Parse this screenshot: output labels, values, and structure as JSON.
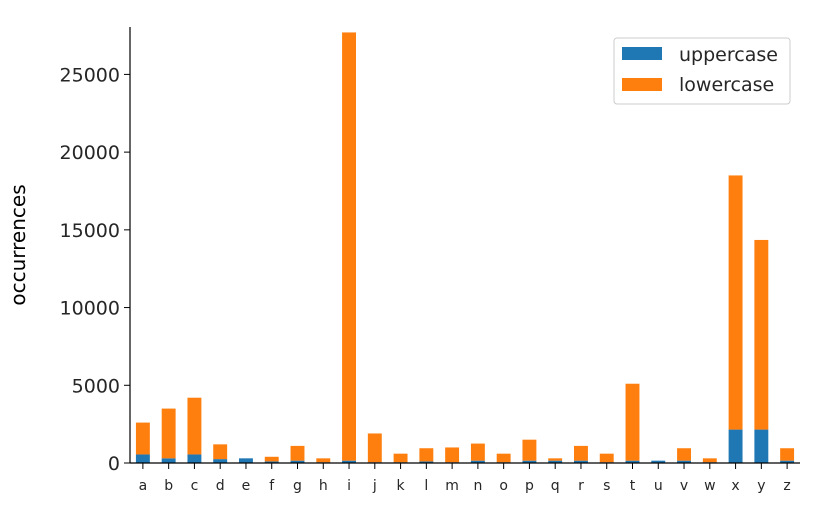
{
  "chart_data": {
    "type": "bar",
    "stacked": true,
    "title": "",
    "xlabel": "",
    "ylabel": "occurrences",
    "ylim": [
      0,
      28500
    ],
    "yticks": [
      0,
      5000,
      10000,
      15000,
      20000,
      25000
    ],
    "grid": false,
    "legend_position": "top-right",
    "categories": [
      "a",
      "b",
      "c",
      "d",
      "e",
      "f",
      "g",
      "h",
      "i",
      "j",
      "k",
      "l",
      "m",
      "n",
      "o",
      "p",
      "q",
      "r",
      "s",
      "t",
      "u",
      "v",
      "w",
      "x",
      "y",
      "z"
    ],
    "series": [
      {
        "name": "uppercase",
        "color": "#1f77b4",
        "values": [
          550,
          300,
          550,
          250,
          300,
          100,
          150,
          50,
          150,
          50,
          50,
          100,
          50,
          150,
          50,
          150,
          150,
          150,
          50,
          150,
          150,
          150,
          50,
          2150,
          2150,
          150
        ]
      },
      {
        "name": "lowercase",
        "color": "#ff7f0e",
        "values": [
          2050,
          3200,
          3650,
          950,
          0,
          300,
          950,
          250,
          27550,
          1850,
          550,
          850,
          950,
          1100,
          550,
          1350,
          150,
          950,
          550,
          4950,
          0,
          800,
          250,
          16350,
          12200,
          800
        ]
      }
    ]
  }
}
